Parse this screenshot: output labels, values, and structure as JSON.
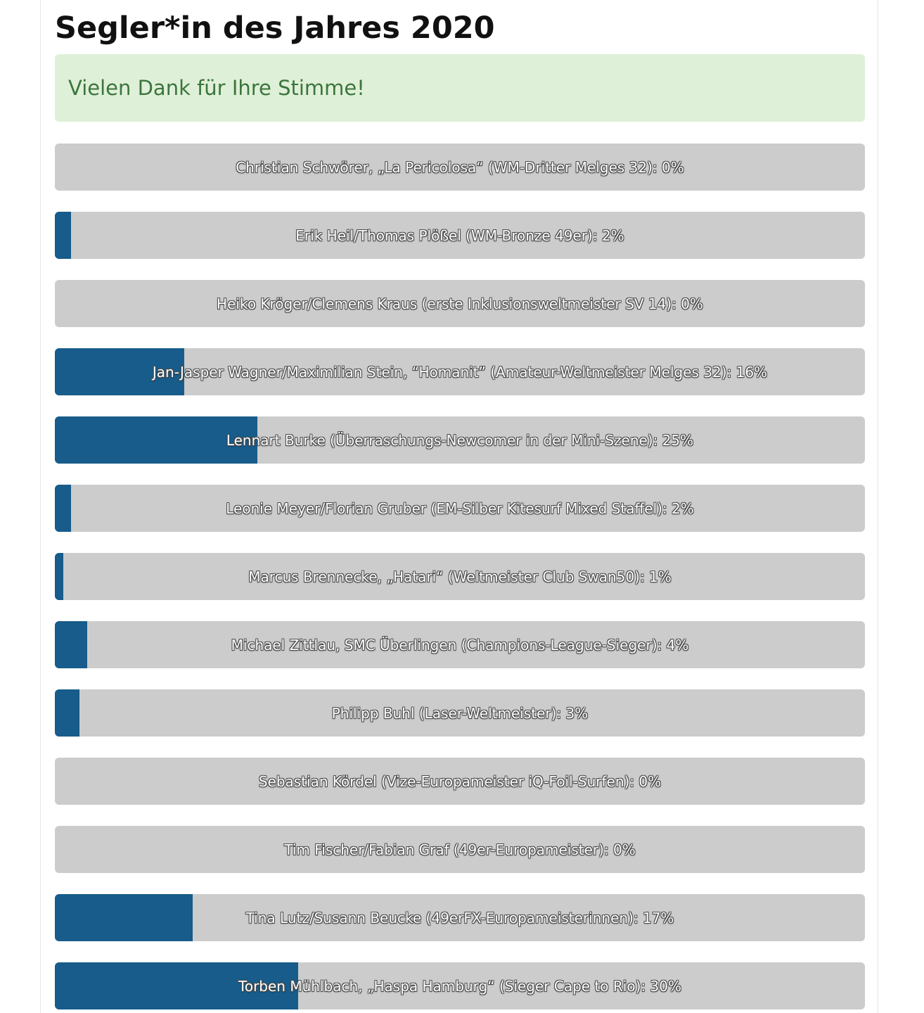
{
  "title": "Segler*in des Jahres 2020",
  "notice": "Vielen Dank für Ihre Stimme!",
  "colors": {
    "bar_fill": "#175c8a",
    "bar_track": "#cccccc",
    "notice_bg": "#dff0d8",
    "notice_text": "#3c763d"
  },
  "results": [
    {
      "label": "Christian Schwörer, „La Pericolosa“ (WM-Dritter Melges 32): 0%",
      "percent": 0
    },
    {
      "label": "Erik Heil/Thomas Plößel (WM-Bronze 49er): 2%",
      "percent": 2
    },
    {
      "label": "Heiko Kröger/Clemens Kraus (erste Inklusionsweltmeister SV 14): 0%",
      "percent": 0
    },
    {
      "label": "Jan-Jasper Wagner/Maximilian Stein, “Homanit” (Amateur-Weltmeister Melges 32): 16%",
      "percent": 16
    },
    {
      "label": "Lennart Burke (Überraschungs-Newcomer in der Mini-Szene): 25%",
      "percent": 25
    },
    {
      "label": "Leonie Meyer/Florian Gruber (EM-Silber Kitesurf Mixed Staffel): 2%",
      "percent": 2
    },
    {
      "label": "Marcus Brennecke, „Hatari“ (Weltmeister Club Swan50): 1%",
      "percent": 1
    },
    {
      "label": "Michael Zittlau, SMC Überlingen (Champions-League-Sieger): 4%",
      "percent": 4
    },
    {
      "label": "Philipp Buhl (Laser-Weltmeister): 3%",
      "percent": 3
    },
    {
      "label": "Sebastian Kördel (Vize-Europameister iQ-Foil-Surfen): 0%",
      "percent": 0
    },
    {
      "label": "Tim Fischer/Fabian Graf (49er-Europameister): 0%",
      "percent": 0
    },
    {
      "label": "Tina Lutz/Susann Beucke (49erFX-Europameisterinnen): 17%",
      "percent": 17
    },
    {
      "label": "Torben Mühlbach, „Haspa Hamburg“ (Sieger Cape to Rio): 30%",
      "percent": 30
    }
  ]
}
